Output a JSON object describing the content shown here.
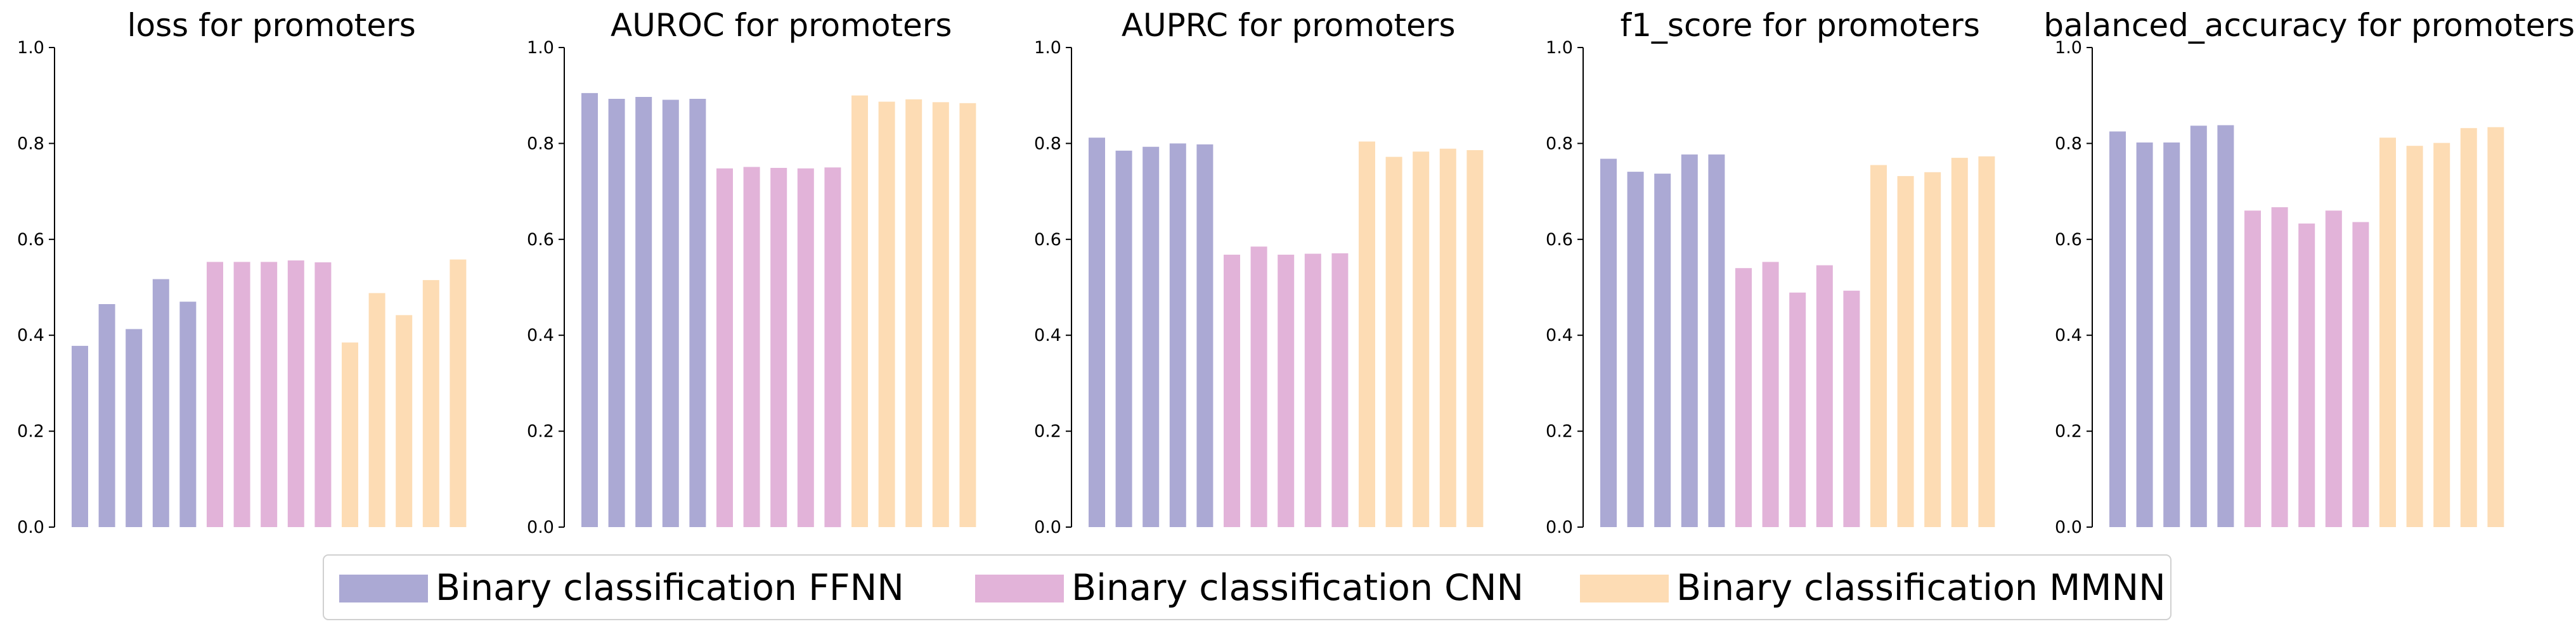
{
  "chart_data": {
    "type": "bar",
    "ylim": [
      0,
      1
    ],
    "yticks": [
      "0.0",
      "0.2",
      "0.4",
      "0.6",
      "0.8",
      "1.0"
    ],
    "grid": false,
    "legend_placement": "bottom-center",
    "series_meta": [
      {
        "name": "Binary classification FFNN",
        "color": "#aba9d4"
      },
      {
        "name": "Binary classification CNN",
        "color": "#e2b3d9"
      },
      {
        "name": "Binary classification MMNN",
        "color": "#fddcb4"
      }
    ],
    "panels": [
      {
        "title": "loss for promoters",
        "groups": [
          [
            0.378,
            0.465,
            0.413,
            0.517,
            0.47
          ],
          [
            0.553,
            0.553,
            0.553,
            0.556,
            0.552
          ],
          [
            0.385,
            0.488,
            0.442,
            0.515,
            0.558
          ]
        ]
      },
      {
        "title": "AUROC for promoters",
        "groups": [
          [
            0.905,
            0.893,
            0.897,
            0.891,
            0.893
          ],
          [
            0.748,
            0.751,
            0.749,
            0.748,
            0.75
          ],
          [
            0.9,
            0.887,
            0.892,
            0.886,
            0.884
          ]
        ]
      },
      {
        "title": "AUPRC for promoters",
        "groups": [
          [
            0.812,
            0.785,
            0.793,
            0.8,
            0.798
          ],
          [
            0.568,
            0.585,
            0.568,
            0.57,
            0.571
          ],
          [
            0.804,
            0.772,
            0.783,
            0.789,
            0.786
          ]
        ]
      },
      {
        "title": "f1_score for promoters",
        "groups": [
          [
            0.768,
            0.741,
            0.737,
            0.777,
            0.777
          ],
          [
            0.54,
            0.553,
            0.489,
            0.546,
            0.493
          ],
          [
            0.755,
            0.732,
            0.74,
            0.77,
            0.773
          ]
        ]
      },
      {
        "title": "balanced_accuracy for promoters",
        "groups": [
          [
            0.825,
            0.802,
            0.802,
            0.837,
            0.838
          ],
          [
            0.66,
            0.667,
            0.633,
            0.66,
            0.636
          ],
          [
            0.812,
            0.795,
            0.801,
            0.832,
            0.834
          ]
        ]
      }
    ]
  }
}
